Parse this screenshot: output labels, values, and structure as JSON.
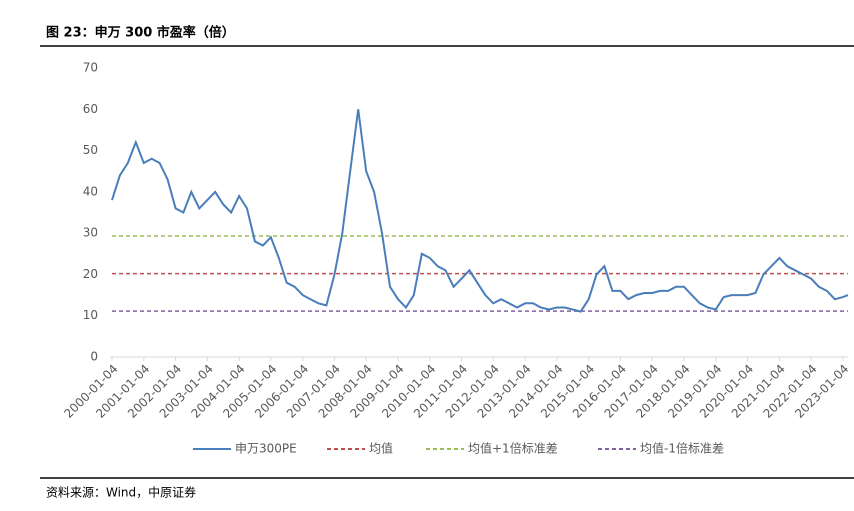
{
  "chart_data": {
    "type": "line",
    "title": "图 23：申万 300 市盈率（倍）",
    "source": "资料来源：Wind，中原证券",
    "x": [
      "2000-01-04",
      "2000-04-04",
      "2000-07-04",
      "2000-10-04",
      "2001-01-04",
      "2001-04-04",
      "2001-07-04",
      "2001-10-04",
      "2002-01-04",
      "2002-04-04",
      "2002-07-04",
      "2002-10-04",
      "2003-01-04",
      "2003-04-04",
      "2003-07-04",
      "2003-10-04",
      "2004-01-04",
      "2004-04-04",
      "2004-07-04",
      "2004-10-04",
      "2005-01-04",
      "2005-04-04",
      "2005-07-04",
      "2005-10-04",
      "2006-01-04",
      "2006-04-04",
      "2006-07-04",
      "2006-10-04",
      "2007-01-04",
      "2007-04-04",
      "2007-07-04",
      "2007-10-04",
      "2008-01-04",
      "2008-04-04",
      "2008-07-04",
      "2008-10-04",
      "2009-01-04",
      "2009-04-04",
      "2009-07-04",
      "2009-10-04",
      "2010-01-04",
      "2010-04-04",
      "2010-07-04",
      "2010-10-04",
      "2011-01-04",
      "2011-04-04",
      "2011-07-04",
      "2011-10-04",
      "2012-01-04",
      "2012-04-04",
      "2012-07-04",
      "2012-10-04",
      "2013-01-04",
      "2013-04-04",
      "2013-07-04",
      "2013-10-04",
      "2014-01-04",
      "2014-04-04",
      "2014-07-04",
      "2014-10-04",
      "2015-01-04",
      "2015-04-04",
      "2015-07-04",
      "2015-10-04",
      "2016-01-04",
      "2016-04-04",
      "2016-07-04",
      "2016-10-04",
      "2017-01-04",
      "2017-04-04",
      "2017-07-04",
      "2017-10-04",
      "2018-01-04",
      "2018-04-04",
      "2018-07-04",
      "2018-10-04",
      "2019-01-04",
      "2019-04-04",
      "2019-07-04",
      "2019-10-04",
      "2020-01-04",
      "2020-04-04",
      "2020-07-04",
      "2020-10-04",
      "2021-01-04",
      "2021-04-04",
      "2021-07-04",
      "2021-10-04",
      "2022-01-04",
      "2022-04-04",
      "2022-07-04",
      "2022-10-04",
      "2023-01-04",
      "2023-03-04"
    ],
    "series": [
      {
        "name": "申万300PE",
        "color": "#4a7ebb",
        "values": [
          38,
          44,
          47,
          52,
          47,
          48,
          47,
          43,
          36,
          35,
          40,
          36,
          38,
          40,
          37,
          35,
          39,
          36,
          28,
          27,
          29,
          24,
          18,
          17,
          15,
          14,
          13,
          12.5,
          20,
          30,
          45,
          60,
          45,
          40,
          30,
          17,
          14,
          12,
          15,
          25,
          24,
          22,
          21,
          17,
          19,
          21,
          18,
          15,
          13,
          14,
          13,
          12,
          13,
          13,
          12,
          11.5,
          12,
          12,
          11.5,
          11,
          14,
          20,
          22,
          16,
          16,
          14,
          15,
          15.5,
          15.5,
          16,
          16,
          17,
          17,
          15,
          13,
          12,
          11.5,
          14.5,
          15,
          15,
          15,
          15.5,
          20,
          22,
          24,
          22,
          21,
          20,
          19,
          17,
          16,
          14,
          14.5,
          15
        ]
      }
    ],
    "reference_lines": [
      {
        "name": "均值",
        "color": "#c0504d",
        "value": 20.2
      },
      {
        "name": "均值+1倍标准差",
        "color": "#9bbb59",
        "value": 29.3
      },
      {
        "name": "均值-1倍标准差",
        "color": "#8064a2",
        "value": 11.1
      }
    ],
    "xlim": [
      "2000-01-04",
      "2023-03-04"
    ],
    "xticks": [
      "2000-01-04",
      "2001-01-04",
      "2002-01-04",
      "2003-01-04",
      "2004-01-04",
      "2005-01-04",
      "2006-01-04",
      "2007-01-04",
      "2008-01-04",
      "2009-01-04",
      "2010-01-04",
      "2011-01-04",
      "2012-01-04",
      "2013-01-04",
      "2014-01-04",
      "2015-01-04",
      "2016-01-04",
      "2017-01-04",
      "2018-01-04",
      "2019-01-04",
      "2020-01-04",
      "2021-01-04",
      "2022-01-04",
      "2023-01-04"
    ],
    "ylim": [
      0,
      70
    ],
    "yticks": [
      0,
      10,
      20,
      30,
      40,
      50,
      60,
      70
    ]
  }
}
